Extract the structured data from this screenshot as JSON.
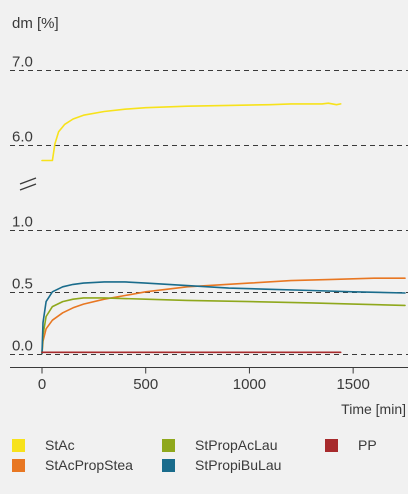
{
  "chart_data": {
    "type": "line",
    "ylabel": "dm [%]",
    "xlabel": "Time [min]",
    "xlim": [
      0,
      1750
    ],
    "x_ticks": [
      "0",
      "500",
      "1000",
      "1500"
    ],
    "y_tick_labels": [
      "7.0",
      "6.0",
      "1.0",
      "0.5",
      "0.0"
    ],
    "axis_break": true,
    "y_segments": [
      {
        "name": "upper",
        "ylim": [
          5.7,
          7.0
        ]
      },
      {
        "name": "lower",
        "ylim": [
          -0.02,
          1.0
        ]
      }
    ],
    "grid": "dashed horizontal lines at labeled y ticks",
    "legend_position": "bottom",
    "series": [
      {
        "name": "StAc",
        "color": "#f7e21b",
        "segment": "upper",
        "points": [
          [
            0,
            5.8
          ],
          [
            50,
            5.8
          ],
          [
            62,
            6.02
          ],
          [
            80,
            6.18
          ],
          [
            110,
            6.28
          ],
          [
            150,
            6.35
          ],
          [
            200,
            6.4
          ],
          [
            300,
            6.45
          ],
          [
            400,
            6.48
          ],
          [
            500,
            6.5
          ],
          [
            700,
            6.52
          ],
          [
            900,
            6.53
          ],
          [
            1100,
            6.54
          ],
          [
            1200,
            6.55
          ],
          [
            1300,
            6.55
          ],
          [
            1350,
            6.55
          ],
          [
            1380,
            6.56
          ],
          [
            1420,
            6.54
          ],
          [
            1440,
            6.55
          ]
        ]
      },
      {
        "name": "StAcPropStea",
        "color": "#e87722",
        "segment": "lower",
        "points": [
          [
            0,
            0.0
          ],
          [
            5,
            0.1
          ],
          [
            20,
            0.2
          ],
          [
            50,
            0.27
          ],
          [
            100,
            0.33
          ],
          [
            150,
            0.37
          ],
          [
            200,
            0.4
          ],
          [
            300,
            0.44
          ],
          [
            400,
            0.47
          ],
          [
            500,
            0.5
          ],
          [
            600,
            0.52
          ],
          [
            700,
            0.54
          ],
          [
            800,
            0.55
          ],
          [
            1000,
            0.57
          ],
          [
            1200,
            0.59
          ],
          [
            1400,
            0.6
          ],
          [
            1600,
            0.61
          ],
          [
            1750,
            0.61
          ]
        ]
      },
      {
        "name": "StPropAcLau",
        "color": "#8fa81c",
        "segment": "lower",
        "points": [
          [
            0,
            0.0
          ],
          [
            5,
            0.15
          ],
          [
            20,
            0.3
          ],
          [
            50,
            0.38
          ],
          [
            100,
            0.42
          ],
          [
            150,
            0.44
          ],
          [
            200,
            0.45
          ],
          [
            300,
            0.45
          ],
          [
            500,
            0.44
          ],
          [
            700,
            0.43
          ],
          [
            1000,
            0.42
          ],
          [
            1300,
            0.41
          ],
          [
            1500,
            0.4
          ],
          [
            1750,
            0.39
          ]
        ]
      },
      {
        "name": "StPropiBuLau",
        "color": "#1a6c8c",
        "segment": "lower",
        "points": [
          [
            0,
            0.0
          ],
          [
            5,
            0.25
          ],
          [
            20,
            0.42
          ],
          [
            50,
            0.5
          ],
          [
            100,
            0.54
          ],
          [
            150,
            0.56
          ],
          [
            200,
            0.57
          ],
          [
            300,
            0.58
          ],
          [
            400,
            0.58
          ],
          [
            500,
            0.57
          ],
          [
            700,
            0.55
          ],
          [
            900,
            0.53
          ],
          [
            1100,
            0.52
          ],
          [
            1300,
            0.51
          ],
          [
            1500,
            0.5
          ],
          [
            1750,
            0.49
          ]
        ]
      },
      {
        "name": "PP",
        "color": "#a72a2c",
        "segment": "lower",
        "points": [
          [
            0,
            0.01
          ],
          [
            200,
            0.01
          ],
          [
            500,
            0.01
          ],
          [
            800,
            0.01
          ],
          [
            1100,
            0.01
          ],
          [
            1440,
            0.01
          ]
        ]
      }
    ]
  },
  "legend": {
    "rows": [
      [
        "StAc",
        "StPropAcLau",
        "PP"
      ],
      [
        "StAcPropStea",
        "StPropiBuLau"
      ]
    ]
  },
  "colors": {
    "background": "#f1f1f1",
    "text": "#3a3a3a",
    "grid": "#3a3a3a"
  }
}
